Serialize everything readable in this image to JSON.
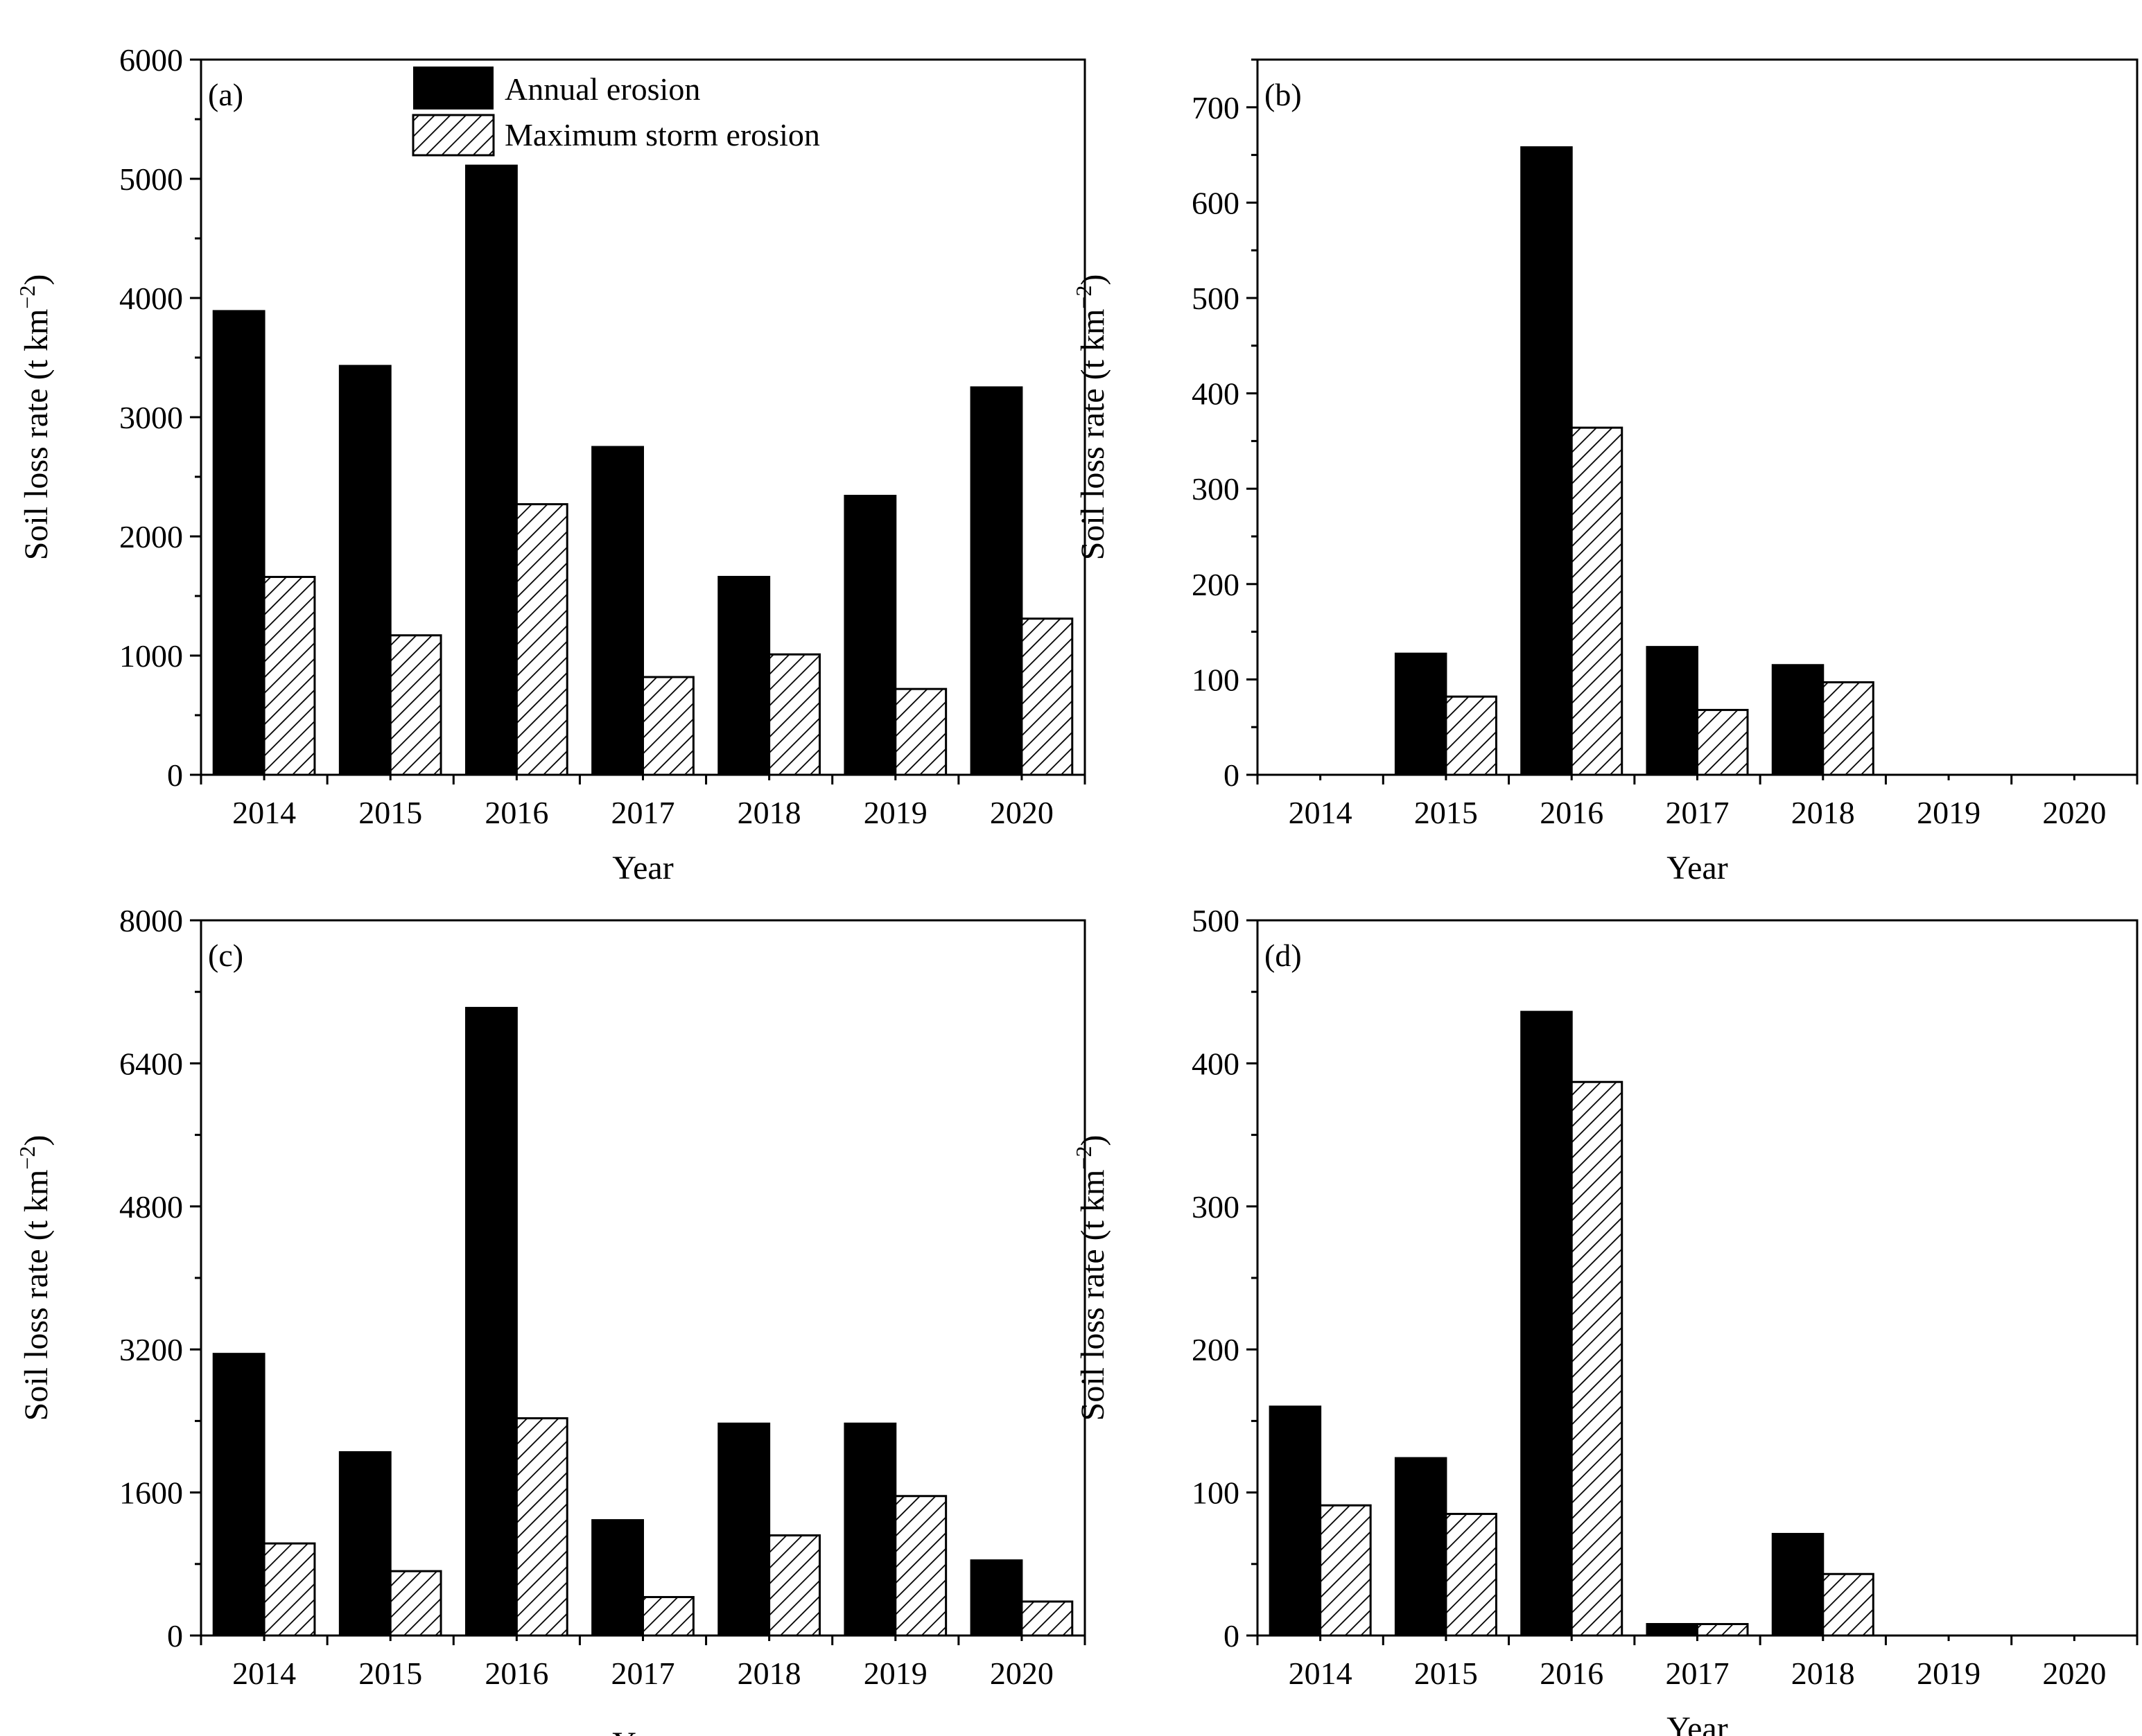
{
  "legend": {
    "annual_label": "Annual erosion",
    "storm_label": "Maximum storm erosion"
  },
  "colors": {
    "annual": "#000000",
    "storm_hatch": "#000000",
    "background": "#ffffff"
  },
  "chart_data": [
    {
      "type": "bar",
      "panel": "(a)",
      "categories": [
        "2014",
        "2015",
        "2016",
        "2017",
        "2018",
        "2019",
        "2020"
      ],
      "series": [
        {
          "name": "Annual erosion",
          "values": [
            3890,
            3430,
            5110,
            2750,
            1660,
            2340,
            3250
          ]
        },
        {
          "name": "Maximum storm erosion",
          "values": [
            1660,
            1170,
            2270,
            820,
            1010,
            720,
            1310
          ]
        }
      ],
      "xlabel": "Year",
      "ylabel_main": "Soil loss rate (t km",
      "ylabel_sup": "−2",
      "ylabel_end": ")",
      "ylim": [
        0,
        6000
      ],
      "yticks": [
        "0",
        "1000",
        "2000",
        "3000",
        "4000",
        "5000",
        "6000"
      ],
      "legend": "top-center"
    },
    {
      "type": "bar",
      "panel": "(b)",
      "categories": [
        "2014",
        "2015",
        "2016",
        "2017",
        "2018",
        "2019",
        "2020"
      ],
      "series": [
        {
          "name": "Annual erosion",
          "values": [
            0,
            127,
            658,
            134,
            115,
            0,
            0
          ]
        },
        {
          "name": "Maximum storm erosion",
          "values": [
            0,
            82,
            364,
            68,
            97,
            0,
            0
          ]
        }
      ],
      "xlabel": "Year",
      "ylabel_main": "Soil loss rate (t km",
      "ylabel_sup": "−2",
      "ylabel_end": ")",
      "ylim": [
        0,
        750
      ],
      "yticks": [
        "0",
        "100",
        "200",
        "300",
        "400",
        "500",
        "600",
        "700"
      ]
    },
    {
      "type": "bar",
      "panel": "(c)",
      "categories": [
        "2014",
        "2015",
        "2016",
        "2017",
        "2018",
        "2019",
        "2020"
      ],
      "series": [
        {
          "name": "Annual erosion",
          "values": [
            3150,
            2050,
            7020,
            1290,
            2370,
            2370,
            840
          ]
        },
        {
          "name": "Maximum storm erosion",
          "values": [
            1030,
            720,
            2430,
            430,
            1120,
            1560,
            380
          ]
        }
      ],
      "xlabel": "Year",
      "ylabel_main": "Soil loss rate (t km",
      "ylabel_sup": "−2",
      "ylabel_end": ")",
      "ylim": [
        0,
        8000
      ],
      "yticks": [
        "0",
        "1600",
        "3200",
        "4800",
        "6400",
        "8000"
      ]
    },
    {
      "type": "bar",
      "panel": "(d)",
      "categories": [
        "2014",
        "2015",
        "2016",
        "2017",
        "2018",
        "2019",
        "2020"
      ],
      "series": [
        {
          "name": "Annual erosion",
          "values": [
            160,
            124,
            436,
            8,
            71,
            0,
            0
          ]
        },
        {
          "name": "Maximum storm erosion",
          "values": [
            91,
            85,
            387,
            8,
            43,
            0,
            0
          ]
        }
      ],
      "xlabel": "Year",
      "ylabel_main": "Soil loss rate (t km",
      "ylabel_sup": "−2",
      "ylabel_end": ")",
      "ylim": [
        0,
        500
      ],
      "yticks": [
        "0",
        "100",
        "200",
        "300",
        "400",
        "500"
      ]
    }
  ]
}
